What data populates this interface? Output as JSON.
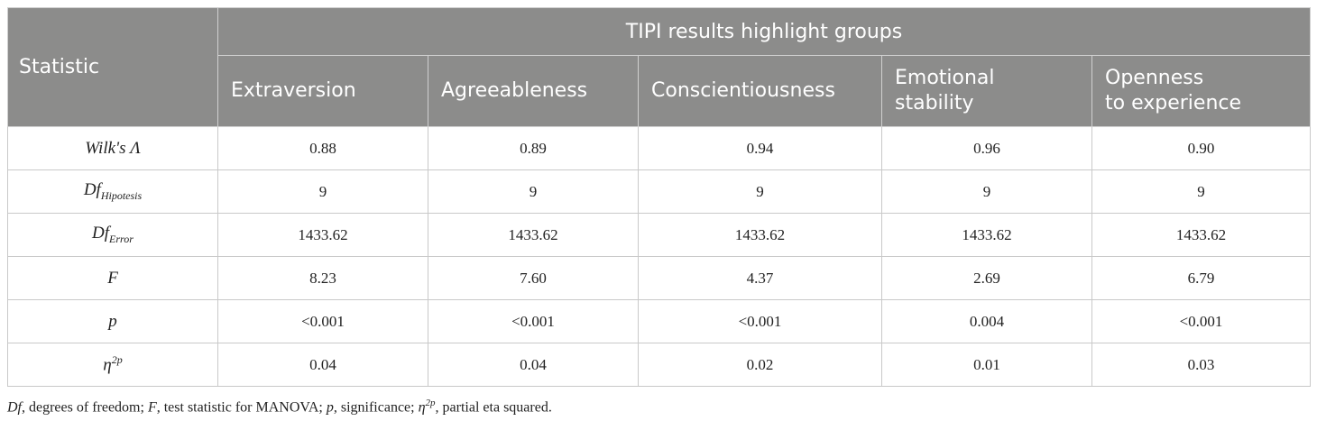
{
  "table": {
    "statistic_header": "Statistic",
    "group_header": "TIPI results highlight groups",
    "columns": [
      {
        "line1": "Extraversion",
        "line2": ""
      },
      {
        "line1": "Agreeableness",
        "line2": ""
      },
      {
        "line1": "Conscientiousness",
        "line2": ""
      },
      {
        "line1": "Emotional",
        "line2": "stability"
      },
      {
        "line1": "Openness",
        "line2": "to experience"
      }
    ],
    "rows": [
      {
        "base": "Wilk's Λ",
        "sub": "",
        "sup": "",
        "values": [
          "0.88",
          "0.89",
          "0.94",
          "0.96",
          "0.90"
        ]
      },
      {
        "base": "Df",
        "sub": "Hipotesis",
        "sup": "",
        "values": [
          "9",
          "9",
          "9",
          "9",
          "9"
        ]
      },
      {
        "base": "Df",
        "sub": "Error",
        "sup": "",
        "values": [
          "1433.62",
          "1433.62",
          "1433.62",
          "1433.62",
          "1433.62"
        ]
      },
      {
        "base": "F",
        "sub": "",
        "sup": "",
        "values": [
          "8.23",
          "7.60",
          "4.37",
          "2.69",
          "6.79"
        ]
      },
      {
        "base": "p",
        "sub": "",
        "sup": "",
        "values": [
          "<0.001",
          "<0.001",
          "<0.001",
          "0.004",
          "<0.001"
        ]
      },
      {
        "base": "η",
        "sub": "",
        "sup": "2p",
        "values": [
          "0.04",
          "0.04",
          "0.02",
          "0.01",
          "0.03"
        ]
      }
    ]
  },
  "footnote": {
    "t1": "Df",
    "t2": ", degrees of freedom; ",
    "t3": "F",
    "t4": ", test statistic for MANOVA; ",
    "t5": "p",
    "t6": ", significance; ",
    "t7": "η",
    "t8": "2p",
    "t9": ", partial eta squared."
  }
}
